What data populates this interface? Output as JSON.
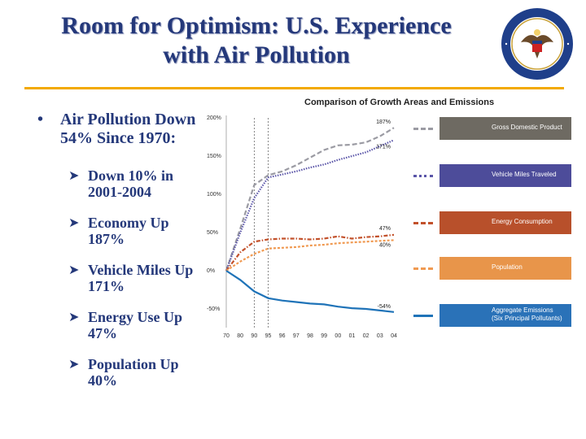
{
  "slide": {
    "title_line1": "Room for Optimism:  U.S. Experience",
    "title_line2": "with Air Pollution"
  },
  "bullets": {
    "main": "Air Pollution Down 54% Since 1970:",
    "sub": [
      "Down 10% in 2001-2004",
      "Economy Up 187%",
      "Vehicle Miles Up 171%",
      "Energy Use Up 47%",
      "Population Up 40%"
    ]
  },
  "icons": [
    "bullet-dot",
    "arrow-right-icon",
    "state-department-seal"
  ],
  "chart_data": {
    "type": "line",
    "title": "Comparison of Growth Areas and Emissions",
    "x": [
      "70",
      "80",
      "90",
      "95",
      "96",
      "97",
      "98",
      "99",
      "00",
      "01",
      "02",
      "03",
      "04"
    ],
    "ylim": [
      -60,
      200
    ],
    "yticks": [
      "200%",
      "150%",
      "100%",
      "50%",
      "0%",
      "-50%"
    ],
    "ytick_values": [
      200,
      150,
      100,
      50,
      0,
      -50
    ],
    "reference_lines_at": [
      "90",
      "95"
    ],
    "series": [
      {
        "name": "Gross Domestic Product",
        "values": [
          0,
          55,
          112,
          125,
          130,
          138,
          148,
          158,
          164,
          165,
          168,
          176,
          187
        ],
        "end_label": "187%",
        "color": "#9b9ba3",
        "style": "dashed"
      },
      {
        "name": "Vehicle Miles Traveled",
        "values": [
          0,
          50,
          95,
          122,
          126,
          130,
          135,
          139,
          145,
          150,
          155,
          163,
          171
        ],
        "end_label": "171%",
        "color": "#5a55a8",
        "style": "dotted"
      },
      {
        "name": "Energy Consumption",
        "values": [
          0,
          24,
          38,
          41,
          42,
          42,
          41,
          42,
          45,
          42,
          44,
          45,
          47
        ],
        "end_label": "47%",
        "color": "#c2512b",
        "style": "dashdot"
      },
      {
        "name": "Population",
        "values": [
          0,
          12,
          22,
          29,
          30,
          31,
          33,
          34,
          36,
          37,
          38,
          39,
          40
        ],
        "end_label": "40%",
        "color": "#f09a52",
        "style": "shortdash"
      },
      {
        "name": "Aggregate Emissions (Six Principal Pollutants)",
        "values": [
          0,
          -12,
          -27,
          -36,
          -39,
          -41,
          -43,
          -44,
          -47,
          -49,
          -50,
          -52,
          -54
        ],
        "end_label": "-54%",
        "color": "#1f73b8",
        "style": "solid"
      }
    ],
    "legend": [
      {
        "label": "Gross Domestic Product",
        "color": "#9b9ba3",
        "style": "dashed",
        "bg": "#6e6a62"
      },
      {
        "label": "Vehicle Miles Traveled",
        "color": "#5a55a8",
        "style": "dotted",
        "bg": "#4d4c9a"
      },
      {
        "label": "Energy Consumption",
        "color": "#c2512b",
        "style": "dashdot",
        "bg": "#b8502b"
      },
      {
        "label": "Population",
        "color": "#f09a52",
        "style": "shortdash",
        "bg": "#e8954a"
      },
      {
        "label_line1": "Aggregate Emissions",
        "label_line2": "(Six Principal Pollutants)",
        "color": "#1f73b8",
        "style": "solid",
        "bg": "#2a72b8"
      }
    ],
    "grid": false,
    "legend_placement": "right"
  }
}
